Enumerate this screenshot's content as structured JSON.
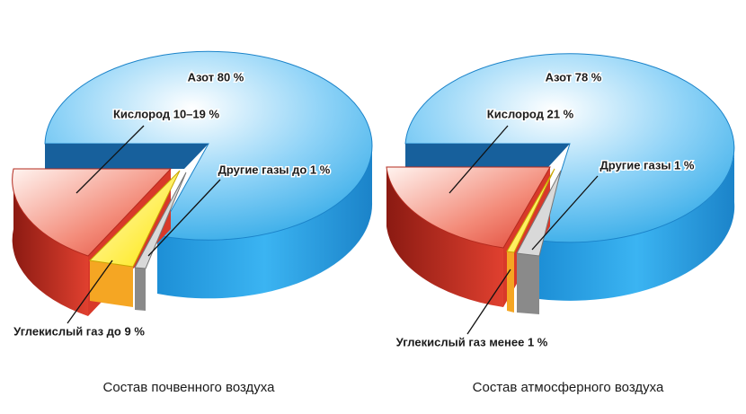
{
  "panels": [
    {
      "caption": "Состав почвенного воздуха",
      "labels": {
        "nitrogen": "Азот 80 %",
        "oxygen": "Кислород 10–19 %",
        "other": "Другие газы до 1 %",
        "co2": "Углекислый газ до 9 %"
      }
    },
    {
      "caption": "Состав атмосферного воздуха",
      "labels": {
        "nitrogen": "Азот 78 %",
        "oxygen": "Кислород 21 %",
        "other": "Другие газы 1 %",
        "co2": "Углекислый газ менее 1 %"
      }
    }
  ]
}
